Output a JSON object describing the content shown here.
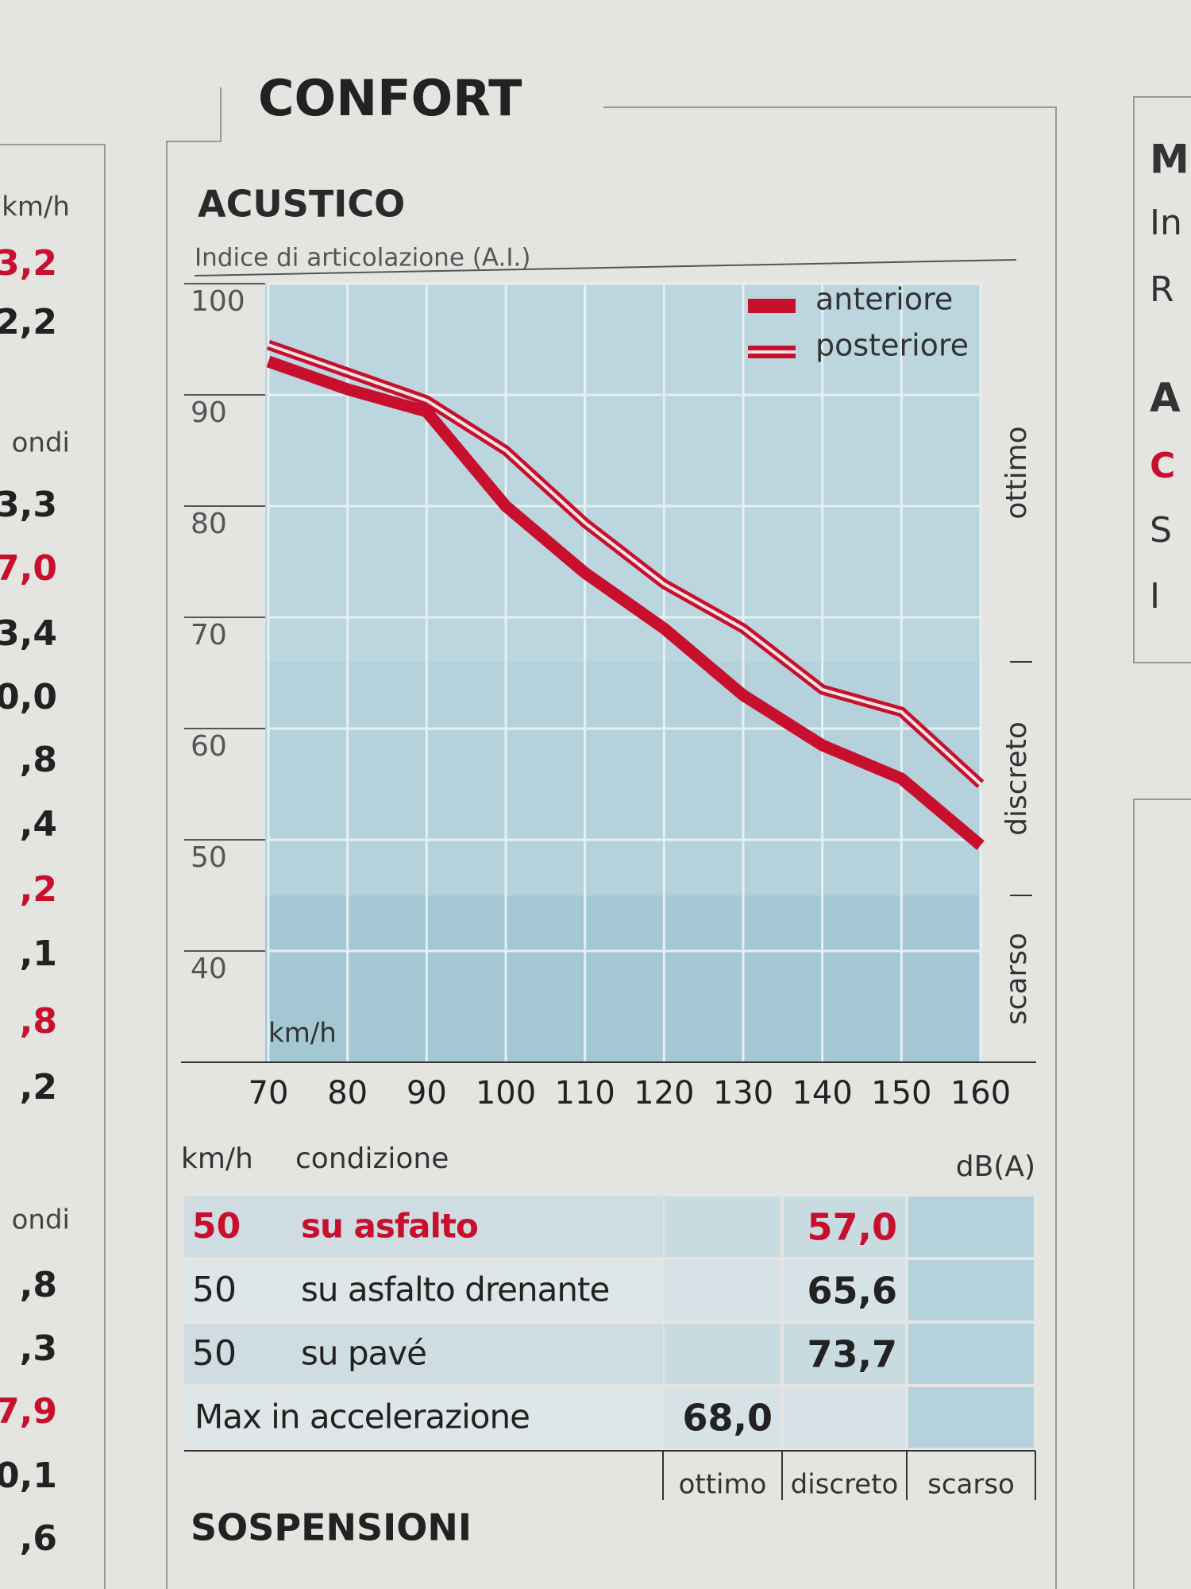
{
  "page": {
    "title": "CONFORT",
    "footer_title": "SOSPENSIONI",
    "left_fragments": [
      {
        "text": "km/h"
      },
      {
        "text": "3,2",
        "color": "#c8102e"
      },
      {
        "text": "2,2"
      },
      {
        "text": "ondi"
      },
      {
        "text": "3,3"
      },
      {
        "text": "7,0",
        "color": "#c8102e"
      },
      {
        "text": "3,4"
      },
      {
        "text": "0,0"
      },
      {
        "text": ",8"
      },
      {
        "text": ",4"
      },
      {
        "text": ",2",
        "color": "#c8102e"
      },
      {
        "text": ",1"
      },
      {
        "text": ",8",
        "color": "#c8102e"
      },
      {
        "text": ",2"
      },
      {
        "text": "ondi"
      },
      {
        "text": ",8"
      },
      {
        "text": ",3"
      },
      {
        "text": "7,9",
        "color": "#c8102e"
      },
      {
        "text": "0,1"
      },
      {
        "text": ",6"
      }
    ],
    "right_fragments": [
      "M",
      "In",
      "R",
      "A",
      "C",
      "S",
      "I"
    ]
  },
  "chart_data": {
    "type": "line",
    "title": "ACUSTICO",
    "subtitle": "Indice di articolazione (A.I.)",
    "x_unit": "km/h",
    "x": [
      70,
      80,
      90,
      100,
      110,
      120,
      130,
      140,
      150,
      160
    ],
    "xlim": [
      70,
      160
    ],
    "xticks": [
      70,
      80,
      90,
      100,
      110,
      120,
      130,
      140,
      150,
      160
    ],
    "ylim": [
      30,
      100
    ],
    "yticks": [
      40,
      50,
      60,
      70,
      80,
      90,
      100
    ],
    "grid": true,
    "legend": "top-right",
    "zones": [
      {
        "label": "scarso",
        "to": 45
      },
      {
        "label": "discreto",
        "to": 66
      },
      {
        "label": "ottimo",
        "to": 100
      }
    ],
    "series": [
      {
        "name": "anteriore",
        "color": "#c8102e",
        "style": "solid",
        "values": [
          93,
          90.5,
          88.5,
          80,
          74,
          69,
          63,
          58.5,
          55.5,
          49.5
        ]
      },
      {
        "name": "posteriore",
        "color": "#c8102e",
        "style": "double",
        "values": [
          94.5,
          92,
          89.5,
          85,
          78.5,
          73,
          69,
          63.5,
          61.5,
          55
        ]
      }
    ]
  },
  "table": {
    "header": [
      "km/h",
      "condizione",
      "dB(A)"
    ],
    "ratings": [
      "ottimo",
      "discreto",
      "scarso"
    ],
    "rows": [
      {
        "speed": "50",
        "condition": "su asfalto",
        "value": "57,0",
        "rating": 1,
        "color": "#c8102e"
      },
      {
        "speed": "50",
        "condition": "su asfalto drenante",
        "value": "65,6",
        "rating": 1
      },
      {
        "speed": "50",
        "condition": "su pavé",
        "value": "73,7",
        "rating": 1
      },
      {
        "condition": "Max in accelerazione",
        "value": "68,0",
        "rating": 0
      }
    ]
  }
}
